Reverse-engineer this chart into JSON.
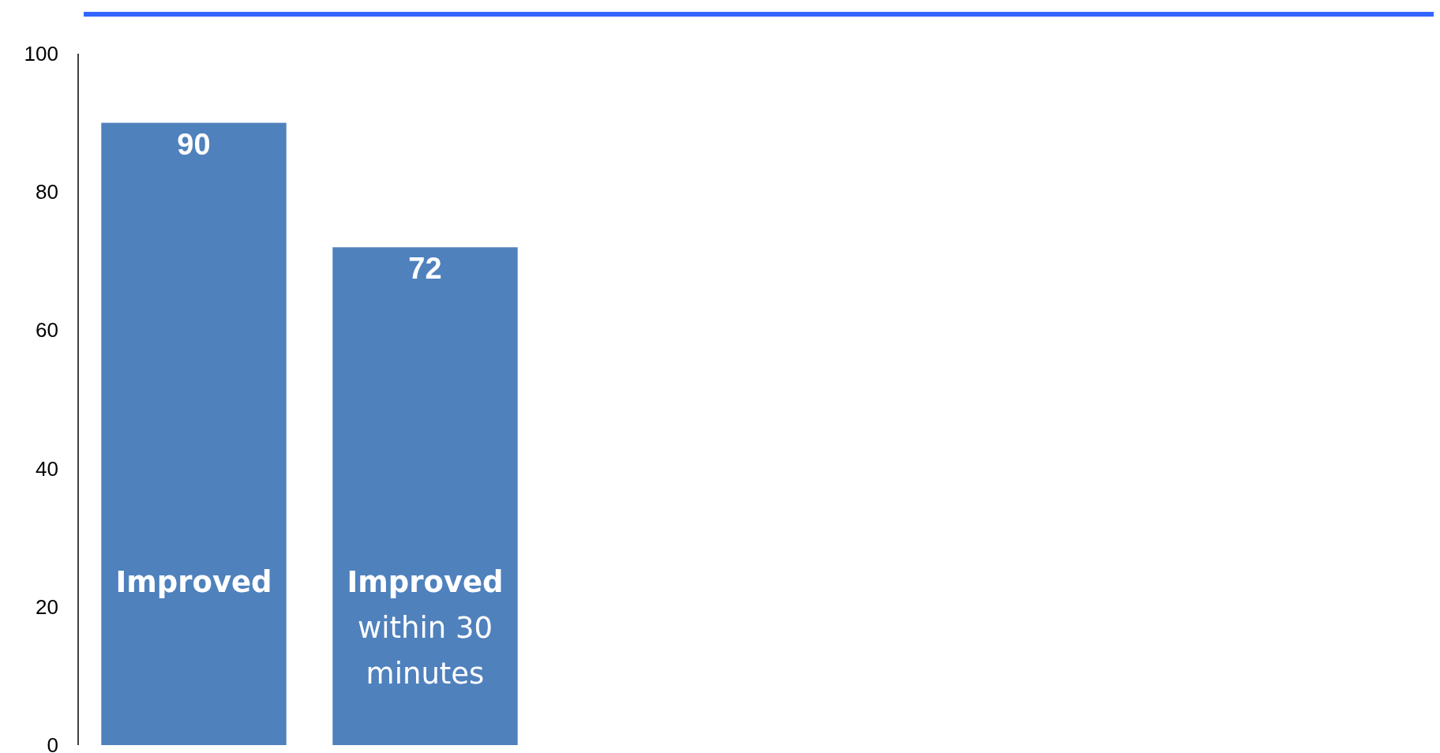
{
  "chart_data": {
    "type": "bar",
    "categories": [
      "Improved",
      "Improved within 30 minutes"
    ],
    "values": [
      90,
      72
    ],
    "color": "#4f81bd",
    "ylim": [
      0,
      100
    ],
    "yticks": [
      0,
      20,
      40,
      60,
      80,
      100
    ],
    "data_labels": true,
    "grid": false
  }
}
